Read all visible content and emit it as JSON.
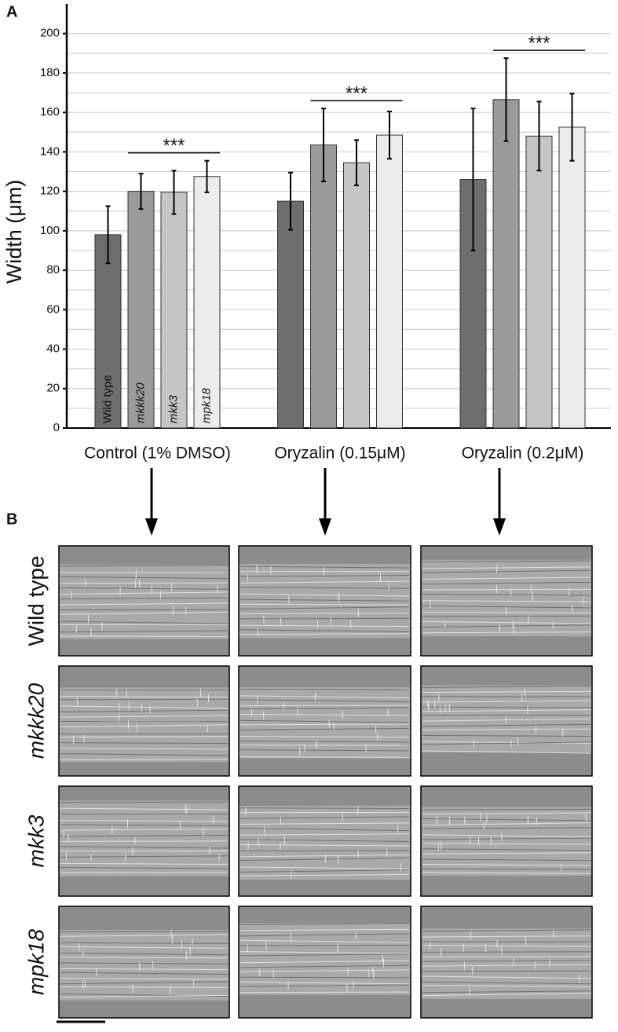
{
  "chart_data": {
    "type": "bar",
    "panel_label": "A",
    "y_label": "Width (μm)",
    "categories": [
      "Control (1% DMSO)",
      "Oryzalin (0.15μM)",
      "Oryzalin (0.2μM)"
    ],
    "series": [
      {
        "name": "Wild type",
        "color": "#6e6e6e",
        "values": [
          98,
          115,
          126
        ],
        "errors": [
          14.5,
          14.5,
          36
        ]
      },
      {
        "name": "mkkk20",
        "color": "#9b9b9b",
        "values": [
          120,
          143.5,
          166.5
        ],
        "errors": [
          9,
          18.5,
          21
        ]
      },
      {
        "name": "mkk3",
        "color": "#c5c5c5",
        "values": [
          119.5,
          134.5,
          148
        ],
        "errors": [
          11,
          11.5,
          17.5
        ]
      },
      {
        "name": "mpk18",
        "color": "#ececec",
        "values": [
          127.5,
          148.5,
          152.5
        ],
        "errors": [
          8,
          12,
          17
        ]
      }
    ],
    "significance": [
      "***",
      "***",
      "***"
    ],
    "ylim": [
      0,
      215
    ],
    "yticks": [
      0,
      20,
      40,
      60,
      80,
      100,
      120,
      140,
      160,
      180,
      200
    ],
    "grid": true
  },
  "panel_b": {
    "label": "B",
    "rows": [
      "Wild type",
      "mkkk20",
      "mkk3",
      "mpk18"
    ]
  }
}
